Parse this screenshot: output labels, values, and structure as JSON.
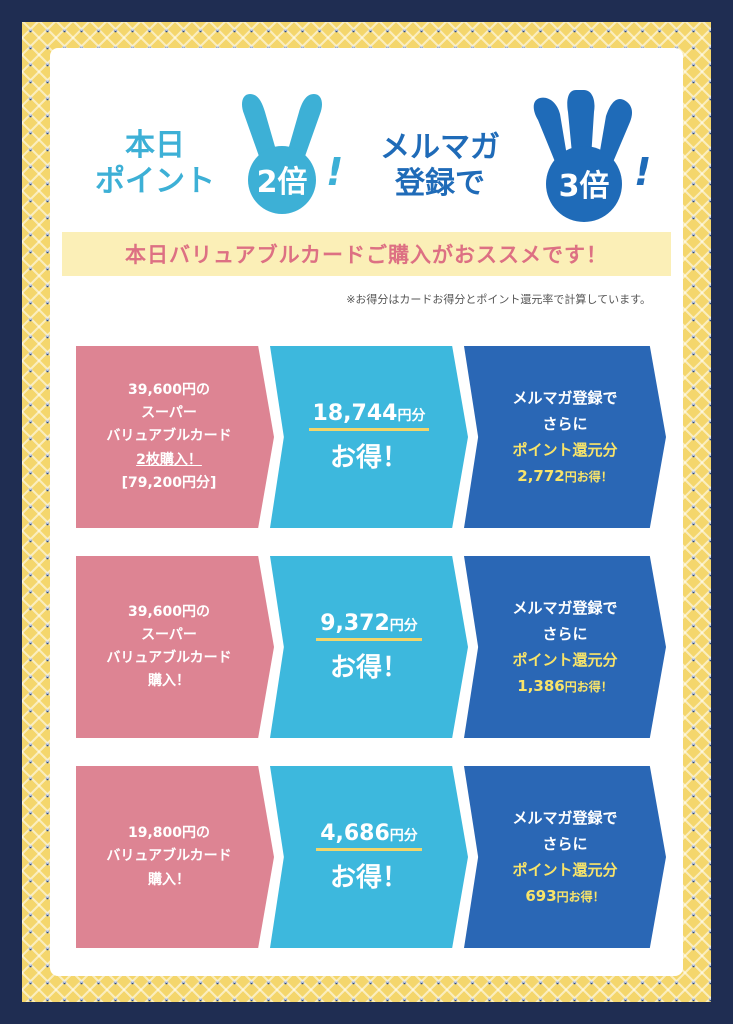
{
  "header": {
    "left_line1": "本日",
    "left_line2": "ポイント",
    "left_badge": "2倍",
    "exclaim": "!",
    "right_line1": "メルマガ",
    "right_line2": "登録で",
    "right_badge": "3倍"
  },
  "banner": "本日バリュアブルカードご購入がおススメです！",
  "note": "※お得分はカードお得分とポイント還元率で計算しています。",
  "colors": {
    "pink": "#dd8493",
    "cyan": "#3db8dd",
    "navy": "#2a67b5",
    "yellow": "#f8e46a",
    "banner_text": "#dd7083"
  },
  "rows": [
    {
      "product_lines": [
        "39,600円の",
        "スーパー",
        "バリュアブルカード",
        "2枚購入！",
        "[79,200円分]"
      ],
      "amount": "18,744",
      "unit": "円分",
      "deal": "お得！",
      "mail_line1": "メルマガ登録で",
      "mail_line2": "さらに",
      "mail_line3": "ポイント還元分",
      "mail_amount": "2,772",
      "mail_unit": "円お得！"
    },
    {
      "product_lines": [
        "39,600円の",
        "スーパー",
        "バリュアブルカード",
        "購入！"
      ],
      "amount": "9,372",
      "unit": "円分",
      "deal": "お得！",
      "mail_line1": "メルマガ登録で",
      "mail_line2": "さらに",
      "mail_line3": "ポイント還元分",
      "mail_amount": "1,386",
      "mail_unit": "円お得！"
    },
    {
      "product_lines": [
        "19,800円の",
        "バリュアブルカード",
        "購入！"
      ],
      "amount": "4,686",
      "unit": "円分",
      "deal": "お得！",
      "mail_line1": "メルマガ登録で",
      "mail_line2": "さらに",
      "mail_line3": "ポイント還元分",
      "mail_amount": "693",
      "mail_unit": "円お得！"
    }
  ]
}
